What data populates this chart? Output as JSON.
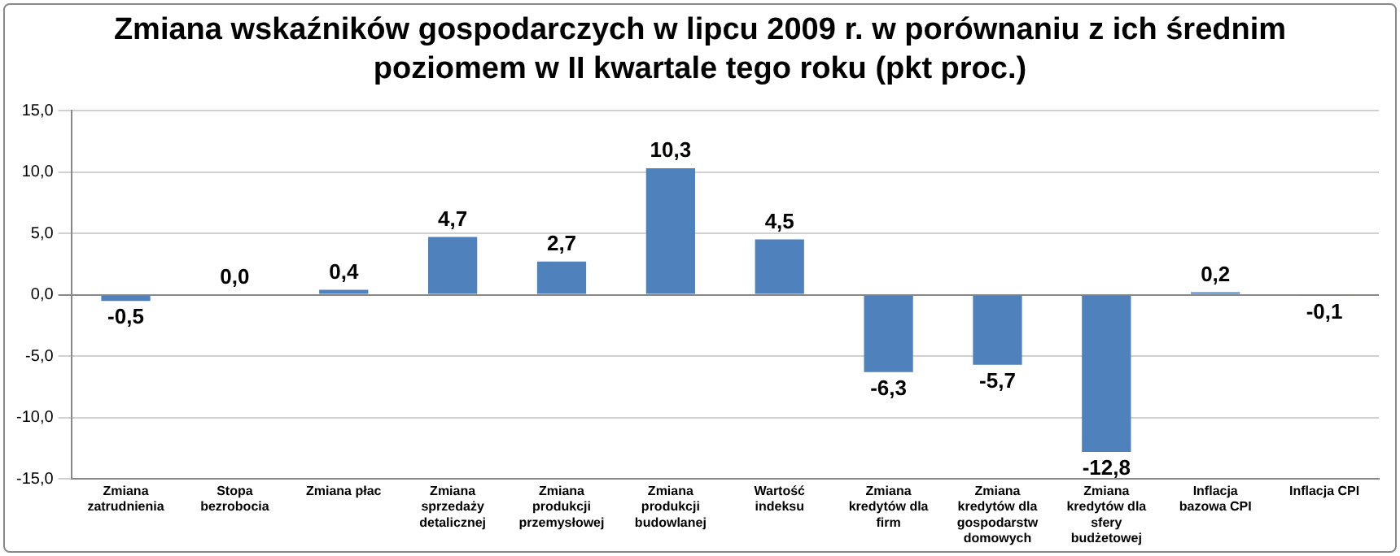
{
  "chart_data": {
    "type": "bar",
    "title": "Zmiana wskaźników gospodarczych w lipcu 2009 r. w porównaniu z ich średnim poziomem w II kwartale tego roku (pkt proc.)",
    "categories": [
      "Zmiana zatrudnienia",
      "Stopa bezrobocia",
      "Zmiana płac",
      "Zmiana sprzedaży detalicznej",
      "Zmiana produkcji przemysłowej",
      "Zmiana produkcji budowlanej",
      "Wartość indeksu",
      "Zmiana kredytów dla firm",
      "Zmiana kredytów dla gospodarstw domowych",
      "Zmiana kredytów dla sfery budżetowej",
      "Inflacja bazowa CPI",
      "Inflacja CPI"
    ],
    "values": [
      -0.5,
      0.0,
      0.4,
      4.7,
      2.7,
      10.3,
      4.5,
      -6.3,
      -5.7,
      -12.8,
      0.2,
      -0.1
    ],
    "value_labels": [
      "-0,5",
      "0,0",
      "0,4",
      "4,7",
      "2,7",
      "10,3",
      "4,5",
      "-6,3",
      "-5,7",
      "-12,8",
      "0,2",
      "-0,1"
    ],
    "color": "#4f81bd",
    "ylim": [
      -15,
      15
    ],
    "yticks": [
      {
        "value": -15,
        "label": "-15,0"
      },
      {
        "value": -10,
        "label": "-10,0"
      },
      {
        "value": -5,
        "label": "-5,0"
      },
      {
        "value": 0,
        "label": "0,0"
      },
      {
        "value": 5,
        "label": "5,0"
      },
      {
        "value": 10,
        "label": "10,0"
      },
      {
        "value": 15,
        "label": "15,0"
      }
    ],
    "grid": "y"
  }
}
